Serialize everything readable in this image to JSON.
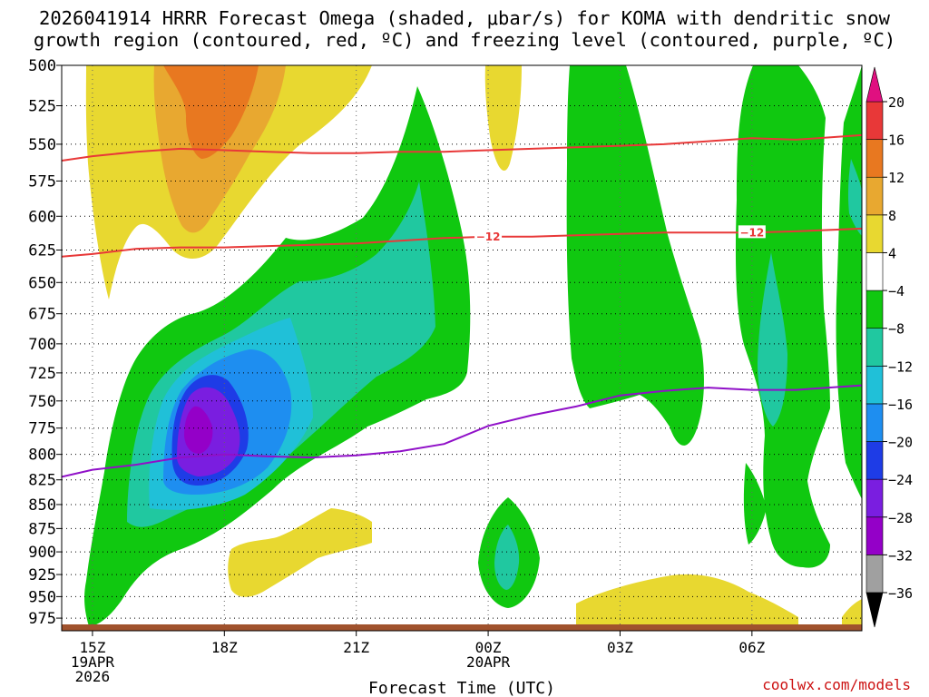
{
  "header": {
    "title_line1": "2026041914 HRRR Forecast Omega (shaded, μbar/s) for KOMA with dendritic snow",
    "title_line2": "growth region (contoured, red, ºC) and freezing level (contoured, purple, ºC)"
  },
  "footer": {
    "watermark": "coolwx.com/models"
  },
  "chart_data": {
    "type": "time-height cross section (filled contour)",
    "title": "2026041914 HRRR Forecast Omega (shaded, μbar/s) for KOMA with dendritic snow growth region (contoured, red, ºC) and freezing level (contoured, purple, ºC)",
    "xlabel": "Forecast Time (UTC)",
    "ylabel": "",
    "x_ticks": [
      {
        "hour": 0,
        "label": "15Z",
        "sub": [
          "19APR",
          "2026"
        ]
      },
      {
        "hour": 3,
        "label": "18Z",
        "sub": []
      },
      {
        "hour": 6,
        "label": "21Z",
        "sub": []
      },
      {
        "hour": 9,
        "label": "00Z",
        "sub": [
          "20APR"
        ]
      },
      {
        "hour": 12,
        "label": "03Z",
        "sub": []
      },
      {
        "hour": 15,
        "label": "06Z",
        "sub": []
      }
    ],
    "x_range_hours": [
      -0.7,
      17.5
    ],
    "y_axis": "pressure (hPa)",
    "y_ticks": [
      500,
      525,
      550,
      575,
      600,
      625,
      650,
      675,
      700,
      725,
      750,
      775,
      800,
      825,
      850,
      875,
      900,
      925,
      950,
      975
    ],
    "y_range": [
      500,
      990
    ],
    "y_scale": "log-pressure (inverted)",
    "grid": true,
    "colorbar": {
      "position": "right",
      "levels": [
        -36,
        -32,
        -28,
        -24,
        -20,
        -16,
        -12,
        -8,
        -4,
        4,
        8,
        12,
        16,
        20
      ],
      "colors": [
        "#000000",
        "#a0a0a0",
        "#9400c8",
        "#7a1ee0",
        "#1e3ce6",
        "#1e8ef0",
        "#20c0d8",
        "#20c8a0",
        "#10c810",
        "#ffffff",
        "#e8d830",
        "#e8a830",
        "#e87820",
        "#e83838",
        "#e01080"
      ]
    },
    "contours": {
      "dgz_red_minus12_label": "−12",
      "dgz_red_minus12": [
        [
          -0.7,
          630
        ],
        [
          0,
          628
        ],
        [
          1,
          624
        ],
        [
          2,
          623
        ],
        [
          3,
          623
        ],
        [
          4,
          622
        ],
        [
          5,
          621
        ],
        [
          6,
          620
        ],
        [
          7,
          618
        ],
        [
          8,
          616
        ],
        [
          9,
          615
        ],
        [
          10,
          615
        ],
        [
          11,
          614
        ],
        [
          12,
          613
        ],
        [
          13,
          612
        ],
        [
          14,
          612
        ],
        [
          15,
          612
        ],
        [
          16,
          611
        ],
        [
          17.5,
          609
        ]
      ],
      "dgz_red_upper": [
        [
          -0.7,
          561
        ],
        [
          0,
          558
        ],
        [
          1,
          555
        ],
        [
          2,
          553
        ],
        [
          3,
          554
        ],
        [
          4,
          555
        ],
        [
          5,
          556
        ],
        [
          6,
          556
        ],
        [
          7,
          555
        ],
        [
          8,
          555
        ],
        [
          9,
          554
        ],
        [
          10,
          553
        ],
        [
          11,
          552
        ],
        [
          12,
          551
        ],
        [
          13,
          550
        ],
        [
          14,
          548
        ],
        [
          15,
          546
        ],
        [
          16,
          547
        ],
        [
          17.5,
          544
        ]
      ],
      "freezing_level_purple": [
        [
          -0.7,
          822
        ],
        [
          0,
          815
        ],
        [
          1,
          810
        ],
        [
          2,
          803
        ],
        [
          3,
          800
        ],
        [
          4,
          802
        ],
        [
          5,
          803
        ],
        [
          6,
          801
        ],
        [
          7,
          797
        ],
        [
          8,
          790
        ],
        [
          9,
          773
        ],
        [
          10,
          763
        ],
        [
          11,
          755
        ],
        [
          12,
          745
        ],
        [
          13,
          741
        ],
        [
          14,
          738
        ],
        [
          15,
          740
        ],
        [
          16,
          740
        ],
        [
          17.5,
          736
        ]
      ]
    },
    "ground_band": "brown"
  }
}
